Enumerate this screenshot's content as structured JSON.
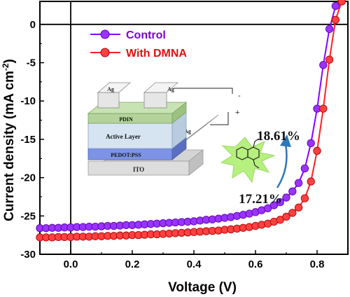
{
  "chart_data": {
    "type": "line",
    "xlabel": "Voltage (V)",
    "ylabel_prefix": "Current density (mA cm",
    "ylabel_sup": "-2",
    "ylabel_suffix": ")",
    "xlim": [
      -0.1,
      0.9
    ],
    "ylim": [
      -30,
      3
    ],
    "x_ticks": [
      0.0,
      0.2,
      0.4,
      0.6,
      0.8
    ],
    "x_tick_labels": [
      "0.0",
      "0.2",
      "0.4",
      "0.6",
      "0.8"
    ],
    "y_ticks": [
      0,
      -5,
      -10,
      -15,
      -20,
      -25,
      -30
    ],
    "y_tick_labels": [
      "0",
      "-5",
      "-10",
      "-15",
      "-20",
      "-25",
      "-30"
    ],
    "grid": false,
    "zero_lines": true,
    "legend_placement": "top-left",
    "series": [
      {
        "name": "Control",
        "color": "#8a00ff",
        "marker": "circle",
        "x": [
          -0.1,
          -0.08,
          -0.06,
          -0.04,
          -0.02,
          0.0,
          0.02,
          0.04,
          0.06,
          0.08,
          0.1,
          0.12,
          0.14,
          0.16,
          0.18,
          0.2,
          0.22,
          0.24,
          0.26,
          0.28,
          0.3,
          0.32,
          0.34,
          0.36,
          0.38,
          0.4,
          0.42,
          0.44,
          0.46,
          0.48,
          0.5,
          0.52,
          0.54,
          0.56,
          0.58,
          0.6,
          0.62,
          0.64,
          0.66,
          0.68,
          0.7,
          0.72,
          0.74,
          0.76,
          0.78,
          0.8,
          0.82,
          0.84,
          0.86,
          0.88
        ],
        "y": [
          -26.6,
          -26.6,
          -26.55,
          -26.55,
          -26.5,
          -26.5,
          -26.45,
          -26.45,
          -26.4,
          -26.4,
          -26.35,
          -26.3,
          -26.3,
          -26.25,
          -26.2,
          -26.2,
          -26.15,
          -26.1,
          -26.05,
          -26.0,
          -25.95,
          -25.9,
          -25.85,
          -25.8,
          -25.75,
          -25.7,
          -25.6,
          -25.5,
          -25.45,
          -25.35,
          -25.25,
          -25.15,
          -25.0,
          -24.85,
          -24.7,
          -24.5,
          -24.25,
          -24.0,
          -23.6,
          -23.2,
          -22.6,
          -21.8,
          -20.7,
          -18.8,
          -15.5,
          -11.0,
          -5.3,
          -0.6,
          2.4,
          3.0
        ]
      },
      {
        "name": "With DMNA",
        "color": "#ff1f1f",
        "marker": "circle",
        "x": [
          -0.1,
          -0.08,
          -0.06,
          -0.04,
          -0.02,
          0.0,
          0.02,
          0.04,
          0.06,
          0.08,
          0.1,
          0.12,
          0.14,
          0.16,
          0.18,
          0.2,
          0.22,
          0.24,
          0.26,
          0.28,
          0.3,
          0.32,
          0.34,
          0.36,
          0.38,
          0.4,
          0.42,
          0.44,
          0.46,
          0.48,
          0.5,
          0.52,
          0.54,
          0.56,
          0.58,
          0.6,
          0.62,
          0.64,
          0.66,
          0.68,
          0.7,
          0.72,
          0.74,
          0.76,
          0.78,
          0.8,
          0.82,
          0.84,
          0.86,
          0.88
        ],
        "y": [
          -27.8,
          -27.8,
          -27.8,
          -27.75,
          -27.75,
          -27.75,
          -27.7,
          -27.7,
          -27.7,
          -27.65,
          -27.65,
          -27.6,
          -27.6,
          -27.55,
          -27.55,
          -27.5,
          -27.5,
          -27.45,
          -27.4,
          -27.4,
          -27.35,
          -27.3,
          -27.25,
          -27.2,
          -27.15,
          -27.1,
          -27.05,
          -27.0,
          -26.95,
          -26.9,
          -26.8,
          -26.75,
          -26.65,
          -26.55,
          -26.45,
          -26.3,
          -26.15,
          -26.0,
          -25.75,
          -25.5,
          -25.1,
          -24.6,
          -23.9,
          -22.7,
          -20.5,
          -16.5,
          -11.0,
          -4.6,
          0.6,
          3.0
        ]
      }
    ]
  },
  "inset": {
    "layers": {
      "ag_left": "Ag",
      "ag_middle": "Ag",
      "ag_right": "Ag",
      "pdin": "PDIN",
      "active_layer": "Active Layer",
      "pedot_pss": "PEDOT:PSS",
      "ito": "ITO"
    },
    "terminals": {
      "minus": "-",
      "plus": "+"
    },
    "efficiency_control": "17.21%",
    "efficiency_dmna": "18.61%"
  }
}
